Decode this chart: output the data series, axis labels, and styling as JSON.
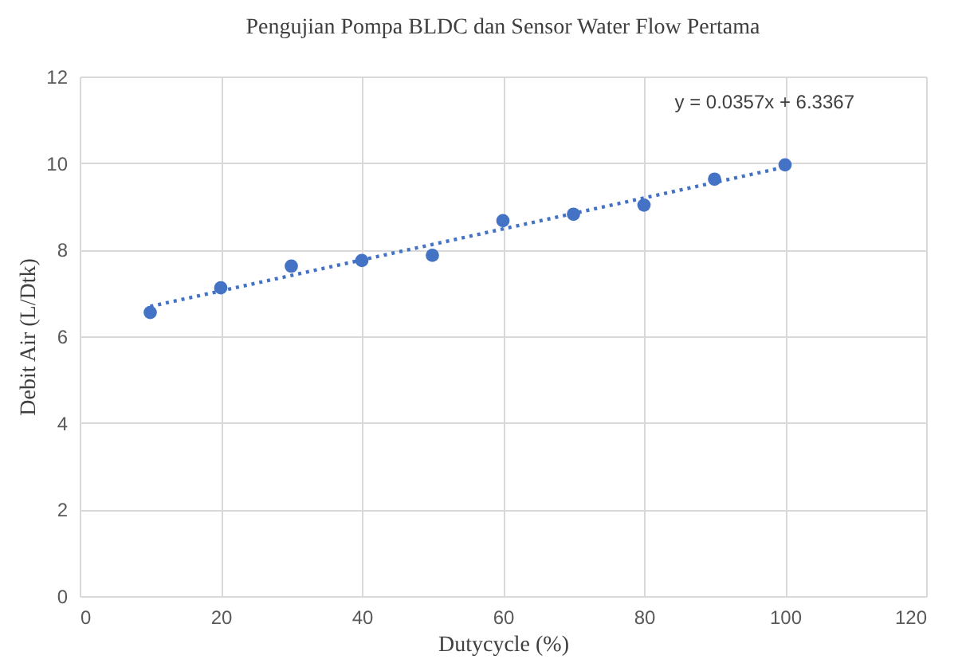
{
  "chart_data": {
    "type": "scatter",
    "title": "Pengujian Pompa BLDC dan Sensor Water Flow Pertama",
    "xlabel": "Dutycycle (%)",
    "ylabel": "Debit Air (L/Dtk)",
    "x": [
      10,
      20,
      30,
      40,
      50,
      60,
      70,
      80,
      90,
      100
    ],
    "series": [
      {
        "type": "scatter",
        "color": "#4472c4",
        "marker": "circle",
        "values": [
          6.55,
          7.12,
          7.62,
          7.75,
          7.87,
          8.67,
          8.82,
          9.03,
          9.63,
          9.96
        ]
      },
      {
        "type": "line",
        "color": "#4472c4",
        "line_style": "dotted",
        "x": [
          10,
          100
        ],
        "values": [
          6.69,
          9.91
        ]
      }
    ],
    "annotations": [
      "y = 0.0357x + 6.3367"
    ],
    "xlim": [
      0,
      120
    ],
    "xticks": [
      0,
      20,
      40,
      60,
      80,
      100,
      120
    ],
    "ylim": [
      0,
      12
    ],
    "yticks": [
      0,
      2,
      4,
      6,
      8,
      10,
      12
    ],
    "grid": true
  }
}
